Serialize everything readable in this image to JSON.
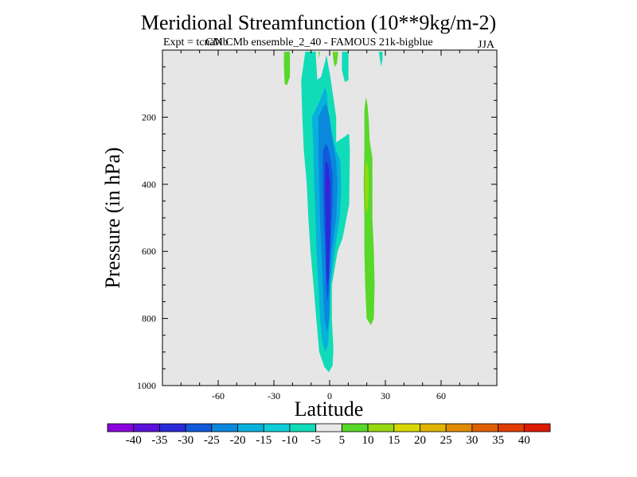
{
  "chart_data": {
    "type": "contour",
    "title": "Meridional Streamfunction (10**9kg/m-2)",
    "subtitle": "Expt = tcnaN CMb ensemble_2_40 - FAMOUS 21k-bigblue",
    "subtitle_overlap": "CMb",
    "season": "JJA",
    "xlabel": "Latitude",
    "ylabel": "Pressure (in hPa)",
    "xlim": [
      -90,
      90
    ],
    "ylim": [
      1000,
      0
    ],
    "xticks": [
      "-60",
      "-30",
      "0",
      "30",
      "60"
    ],
    "xtick_values": [
      -60,
      -30,
      0,
      30,
      60
    ],
    "yticks": [
      "200",
      "400",
      "600",
      "800",
      "1000"
    ],
    "ytick_values": [
      200,
      400,
      600,
      800,
      1000
    ],
    "colorbar": {
      "labels": [
        "-40",
        "-35",
        "-30",
        "-25",
        "-20",
        "-15",
        "-10",
        "-5",
        "5",
        "10",
        "15",
        "20",
        "25",
        "30",
        "35",
        "40"
      ],
      "colors": [
        "#8a00dc",
        "#5a10d8",
        "#2a2ad8",
        "#1258dc",
        "#0a88dc",
        "#08b0dc",
        "#10ccd8",
        "#10dcb8",
        "#e8e8e8",
        "#58d828",
        "#98d810",
        "#d8d800",
        "#e0b400",
        "#e08c00",
        "#e06000",
        "#e03c00",
        "#dc1a00"
      ]
    },
    "regions": [
      {
        "name": "southern-outer-cell",
        "level": -10,
        "color": "#10ccd8",
        "polygon": [
          [
            -12.7,
            5
          ],
          [
            -15.1,
            90
          ],
          [
            -14.3,
            200
          ],
          [
            -12.7,
            300
          ],
          [
            -11.2,
            350
          ],
          [
            -11.1,
            400
          ],
          [
            -10.3,
            500
          ],
          [
            -9.9,
            600
          ],
          [
            -8.3,
            700
          ],
          [
            -6.8,
            800
          ],
          [
            -5.2,
            900
          ],
          [
            -2.8,
            940
          ],
          [
            -0.4,
            956
          ],
          [
            1.2,
            935
          ],
          [
            1.6,
            890
          ],
          [
            0.9,
            800
          ],
          [
            0.8,
            700
          ],
          [
            3.9,
            600
          ],
          [
            6.6,
            550
          ],
          [
            10.1,
            450
          ],
          [
            10.5,
            300
          ],
          [
            9.8,
            250
          ],
          [
            5.8,
            270
          ],
          [
            3.1,
            280
          ],
          [
            3.1,
            200
          ],
          [
            -0.5,
            80
          ],
          [
            -1.7,
            18
          ],
          [
            -4.6,
            80
          ],
          [
            -7,
            90
          ],
          [
            -8.1,
            20
          ],
          [
            -7.9,
            5
          ]
        ]
      },
      {
        "name": "cell-level-minus-5",
        "level": -5,
        "color": "#10dcb8",
        "polygon": [
          [
            -13.1,
            5
          ],
          [
            -15.3,
            90
          ],
          [
            -14.7,
            200
          ],
          [
            -13.9,
            300
          ],
          [
            -12.3,
            400
          ],
          [
            -11.5,
            500
          ],
          [
            -10.3,
            600
          ],
          [
            -8.7,
            700
          ],
          [
            -7.2,
            800
          ],
          [
            -5.6,
            900
          ],
          [
            -2.8,
            945
          ],
          [
            -0.4,
            960
          ],
          [
            1.6,
            940
          ],
          [
            2,
            890
          ],
          [
            1.2,
            800
          ],
          [
            1.2,
            700
          ],
          [
            4.3,
            600
          ],
          [
            7,
            560
          ],
          [
            10.5,
            460
          ],
          [
            10.9,
            300
          ],
          [
            10.5,
            250
          ],
          [
            6.2,
            265
          ],
          [
            3.5,
            275
          ],
          [
            3.5,
            200
          ],
          [
            0.4,
            80
          ],
          [
            -1.7,
            15
          ],
          [
            -4.2,
            80
          ],
          [
            -6.6,
            92
          ],
          [
            -7.4,
            20
          ],
          [
            -7.4,
            5
          ]
        ]
      },
      {
        "name": "cell-level-minus-15",
        "level": -15,
        "color": "#08b0dc",
        "polygon": [
          [
            -9.5,
            200
          ],
          [
            -8.7,
            300
          ],
          [
            -8.3,
            400
          ],
          [
            -7.6,
            500
          ],
          [
            -7.1,
            600
          ],
          [
            -6,
            700
          ],
          [
            -5.2,
            800
          ],
          [
            -4,
            870
          ],
          [
            -2.4,
            900
          ],
          [
            -0.9,
            880
          ],
          [
            0,
            800
          ],
          [
            0.4,
            700
          ],
          [
            2.7,
            600
          ],
          [
            5.4,
            500
          ],
          [
            6.2,
            420
          ],
          [
            5.8,
            330
          ],
          [
            3.5,
            300
          ],
          [
            1.2,
            250
          ],
          [
            -0.9,
            180
          ],
          [
            -1.5,
            130
          ],
          [
            -2.4,
            110
          ],
          [
            -5.2,
            150
          ]
        ]
      },
      {
        "name": "cell-level-minus-20",
        "level": -20,
        "color": "#0a88dc",
        "polygon": [
          [
            -6,
            200
          ],
          [
            -6,
            300
          ],
          [
            -5.6,
            400
          ],
          [
            -5.2,
            500
          ],
          [
            -4.4,
            600
          ],
          [
            -3.6,
            700
          ],
          [
            -2.8,
            800
          ],
          [
            -1.3,
            840
          ],
          [
            -0.1,
            790
          ],
          [
            0,
            700
          ],
          [
            1.2,
            600
          ],
          [
            3.5,
            500
          ],
          [
            4.3,
            400
          ],
          [
            3.5,
            330
          ],
          [
            1.6,
            270
          ],
          [
            -0.1,
            200
          ],
          [
            -1.7,
            160
          ],
          [
            -3.6,
            170
          ]
        ]
      },
      {
        "name": "cell-level-minus-25",
        "level": -25,
        "color": "#1258dc",
        "polygon": [
          [
            -3.6,
            300
          ],
          [
            -3.6,
            400
          ],
          [
            -3.2,
            500
          ],
          [
            -2.4,
            600
          ],
          [
            -2,
            700
          ],
          [
            -1.3,
            750
          ],
          [
            -0.5,
            720
          ],
          [
            -0.1,
            650
          ],
          [
            0.8,
            550
          ],
          [
            1.6,
            450
          ],
          [
            1.6,
            370
          ],
          [
            0.4,
            320
          ],
          [
            -0.9,
            290
          ],
          [
            -2,
            280
          ]
        ]
      },
      {
        "name": "cell-level-minus-30",
        "level": -30,
        "color": "#2a2ad8",
        "polygon": [
          [
            -2.4,
            340
          ],
          [
            -2.4,
            450
          ],
          [
            -2,
            550
          ],
          [
            -1.7,
            650
          ],
          [
            -1.3,
            700
          ],
          [
            -0.5,
            680
          ],
          [
            -0.1,
            600
          ],
          [
            0.4,
            500
          ],
          [
            0.4,
            400
          ],
          [
            -0.5,
            350
          ],
          [
            -1.7,
            330
          ]
        ]
      },
      {
        "name": "cell-level-minus-35",
        "level": -35,
        "color": "#5a10d8",
        "polygon": [
          [
            -1.7,
            380
          ],
          [
            -1.7,
            420
          ],
          [
            -1.3,
            440
          ],
          [
            -0.9,
            420
          ],
          [
            -0.9,
            390
          ],
          [
            -1.3,
            375
          ]
        ]
      },
      {
        "name": "northern-positive-cell",
        "level": 5,
        "color": "#58d828",
        "polygon": [
          [
            18.7,
            180
          ],
          [
            18.7,
            300
          ],
          [
            18.3,
            400
          ],
          [
            18.7,
            500
          ],
          [
            18.7,
            600
          ],
          [
            19.1,
            700
          ],
          [
            19.9,
            800
          ],
          [
            22.2,
            820
          ],
          [
            23.8,
            800
          ],
          [
            24.2,
            700
          ],
          [
            23.8,
            600
          ],
          [
            23,
            500
          ],
          [
            23,
            400
          ],
          [
            23,
            320
          ],
          [
            21.5,
            270
          ],
          [
            21.1,
            210
          ],
          [
            20.3,
            160
          ],
          [
            19.5,
            140
          ]
        ]
      },
      {
        "name": "northern-core",
        "level": 10,
        "color": "#98d810",
        "polygon": [
          [
            19.1,
            350
          ],
          [
            19.1,
            400
          ],
          [
            19.1,
            450
          ],
          [
            19.9,
            490
          ],
          [
            20.7,
            460
          ],
          [
            21.1,
            400
          ],
          [
            20.7,
            350
          ],
          [
            19.9,
            330
          ]
        ]
      },
      {
        "name": "top-left-positive",
        "level": 5,
        "color": "#58d828",
        "polygon": [
          [
            -24.6,
            5
          ],
          [
            -24.6,
            50
          ],
          [
            -24.2,
            100
          ],
          [
            -23,
            105
          ],
          [
            -21.4,
            80
          ],
          [
            -21.4,
            5
          ]
        ]
      },
      {
        "name": "top-tongue-positive",
        "level": 5,
        "color": "#58d828",
        "polygon": [
          [
            1.6,
            5
          ],
          [
            2,
            30
          ],
          [
            2.7,
            50
          ],
          [
            3.9,
            40
          ],
          [
            4.6,
            5
          ]
        ]
      },
      {
        "name": "top-tongue-core",
        "level": 10,
        "color": "#98d810",
        "polygon": [
          [
            2.7,
            5
          ],
          [
            3.1,
            20
          ],
          [
            3.5,
            12
          ],
          [
            3.5,
            5
          ]
        ]
      },
      {
        "name": "top-right-cyan",
        "level": -5,
        "color": "#10dcb8",
        "polygon": [
          [
            6.6,
            5
          ],
          [
            6.6,
            60
          ],
          [
            8.2,
            95
          ],
          [
            10.1,
            90
          ],
          [
            10.1,
            5
          ]
        ]
      },
      {
        "name": "top-right-positive",
        "level": 5,
        "color": "#58d828",
        "polygon": [
          [
            -6,
            5
          ],
          [
            -5.6,
            25
          ],
          [
            -5.2,
            5
          ]
        ]
      },
      {
        "name": "top-far-right",
        "level": -5,
        "color": "#10dcb8",
        "polygon": [
          [
            26.5,
            5
          ],
          [
            27.7,
            50
          ],
          [
            28.5,
            25
          ],
          [
            28.5,
            5
          ]
        ]
      }
    ]
  }
}
